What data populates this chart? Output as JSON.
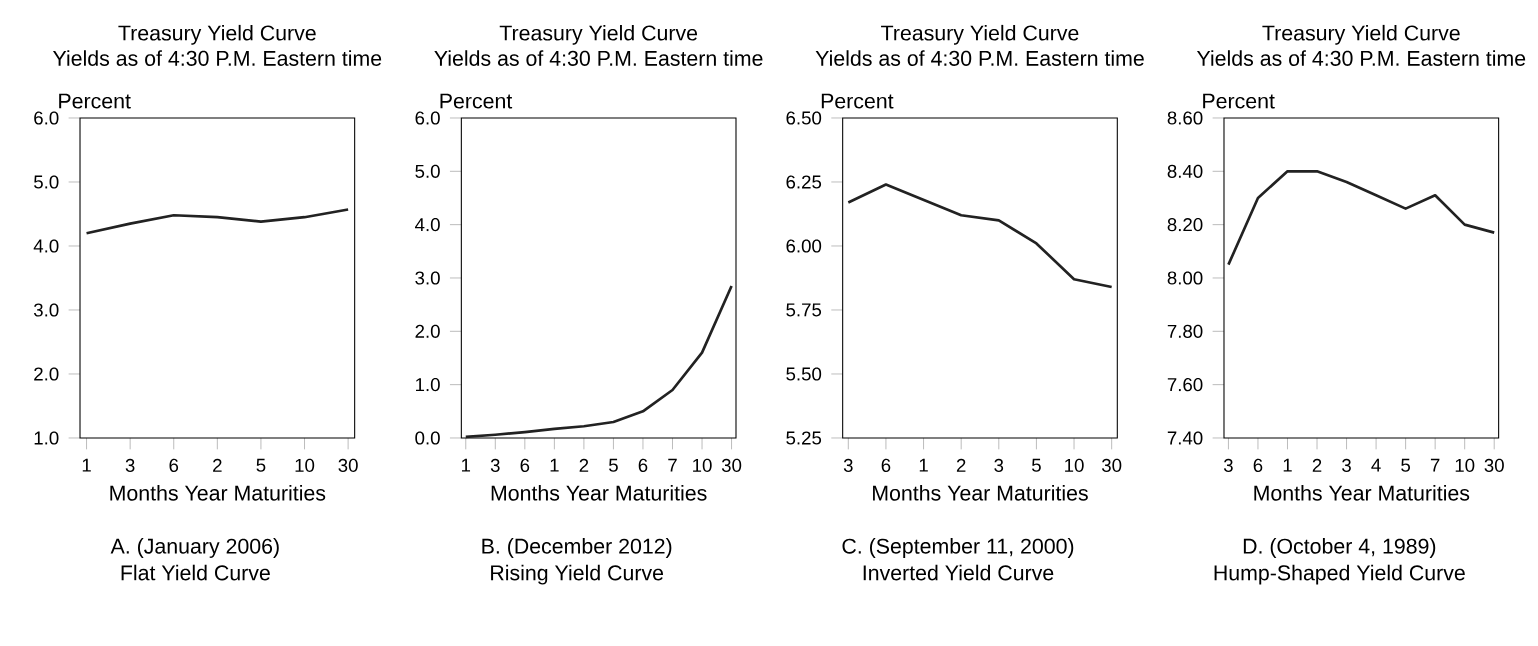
{
  "chart_data": [
    {
      "type": "line",
      "title": "Treasury Yield Curve",
      "subtitle": "Yields as of 4:30 P.M. Eastern time",
      "ylabel": "Percent",
      "xlabel": "Months Year      Maturities",
      "annotations": [
        "A. (January 2006)",
        "Flat Yield Curve"
      ],
      "categories": [
        "1",
        "3",
        "6",
        "2",
        "5",
        "10",
        "30"
      ],
      "values": [
        4.2,
        4.35,
        4.48,
        4.45,
        4.38,
        4.45,
        4.57
      ],
      "color": "#222222",
      "ylim": [
        1.0,
        6.0
      ],
      "yticks": [
        {
          "value": 1,
          "label": "1.0"
        },
        {
          "value": 2,
          "label": "2.0"
        },
        {
          "value": 3,
          "label": "3.0"
        },
        {
          "value": 4,
          "label": "4.0"
        },
        {
          "value": 5,
          "label": "5.0"
        },
        {
          "value": 6,
          "label": "6.0"
        }
      ],
      "grid": false,
      "marker": "none"
    },
    {
      "type": "line",
      "title": "Treasury Yield Curve",
      "subtitle": "Yields as of 4:30 P.M. Eastern time",
      "ylabel": "Percent",
      "xlabel": "Months Year      Maturities",
      "annotations": [
        "B. (December 2012)",
        "Rising Yield Curve"
      ],
      "categories": [
        "1",
        "3",
        "6",
        "1",
        "2",
        "5",
        "6",
        "7",
        "10",
        "30"
      ],
      "values": [
        0.02,
        0.06,
        0.11,
        0.17,
        0.22,
        0.3,
        0.5,
        0.9,
        1.6,
        2.85
      ],
      "color": "#222222",
      "ylim": [
        0.0,
        6.0
      ],
      "yticks": [
        {
          "value": 0,
          "label": "0.0"
        },
        {
          "value": 1,
          "label": "1.0"
        },
        {
          "value": 2,
          "label": "2.0"
        },
        {
          "value": 3,
          "label": "3.0"
        },
        {
          "value": 4,
          "label": "4.0"
        },
        {
          "value": 5,
          "label": "5.0"
        },
        {
          "value": 6,
          "label": "6.0"
        }
      ],
      "grid": false,
      "marker": "none"
    },
    {
      "type": "line",
      "title": "Treasury Yield Curve",
      "subtitle": "Yields as of 4:30 P.M. Eastern time",
      "ylabel": "Percent",
      "xlabel": "Months Year      Maturities",
      "annotations": [
        "C. (September 11, 2000)",
        "Inverted Yield Curve"
      ],
      "categories": [
        "3",
        "6",
        "1",
        "2",
        "3",
        "5",
        "10",
        "30"
      ],
      "values": [
        6.17,
        6.24,
        6.18,
        6.12,
        6.1,
        6.01,
        5.87,
        5.84
      ],
      "color": "#222222",
      "ylim": [
        5.25,
        6.5
      ],
      "yticks": [
        {
          "value": 5.25,
          "label": "5.25"
        },
        {
          "value": 5.5,
          "label": "5.50"
        },
        {
          "value": 5.75,
          "label": "5.75"
        },
        {
          "value": 6,
          "label": "6.00"
        },
        {
          "value": 6.25,
          "label": "6.25"
        },
        {
          "value": 6.5,
          "label": "6.50"
        }
      ],
      "grid": false,
      "marker": "none"
    },
    {
      "type": "line",
      "title": "Treasury Yield Curve",
      "subtitle": "Yields as of 4:30 P.M. Eastern time",
      "ylabel": "Percent",
      "xlabel": "Months Year      Maturities",
      "annotations": [
        "D. (October 4, 1989)",
        "Hump-Shaped Yield Curve"
      ],
      "categories": [
        "3",
        "6",
        "1",
        "2",
        "3",
        "4",
        "5",
        "7",
        "10",
        "30"
      ],
      "values": [
        8.05,
        8.3,
        8.4,
        8.4,
        8.36,
        8.31,
        8.26,
        8.31,
        8.2,
        8.17
      ],
      "color": "#222222",
      "ylim": [
        7.4,
        8.6
      ],
      "yticks": [
        {
          "value": 7.4,
          "label": "7.40"
        },
        {
          "value": 7.6,
          "label": "7.60"
        },
        {
          "value": 7.8,
          "label": "7.80"
        },
        {
          "value": 8.0,
          "label": "8.00"
        },
        {
          "value": 8.2,
          "label": "8.20"
        },
        {
          "value": 8.4,
          "label": "8.40"
        },
        {
          "value": 8.6,
          "label": "8.60"
        }
      ],
      "grid": false,
      "marker": "none"
    }
  ]
}
